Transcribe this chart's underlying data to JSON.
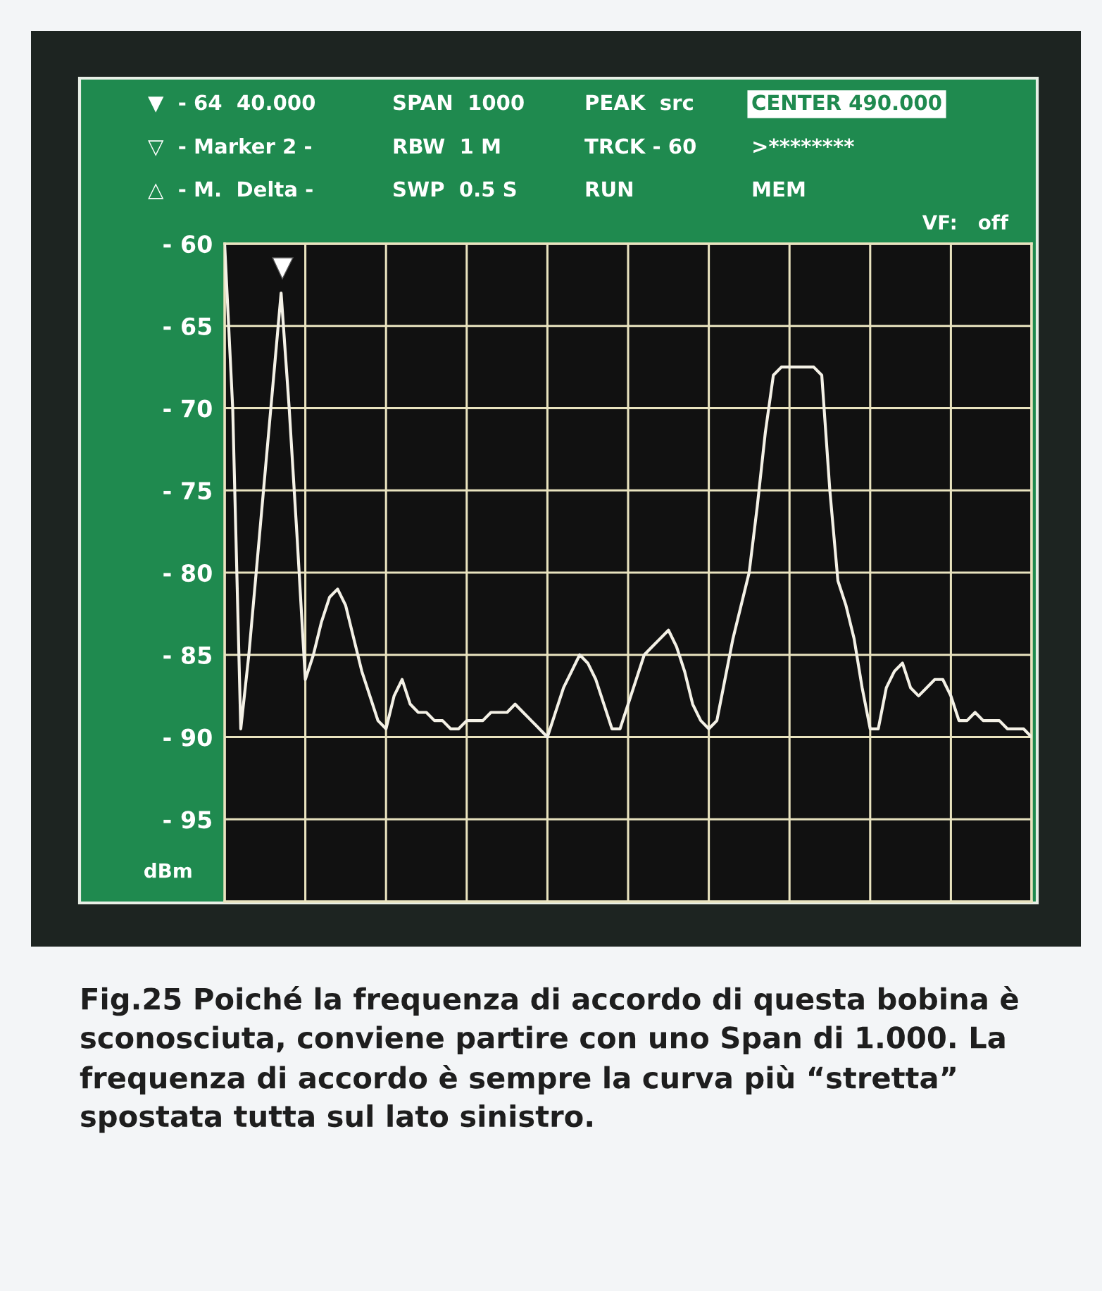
{
  "chart_data": {
    "type": "line",
    "annotations": [
      "▼  - 64  40.000",
      "SPAN  1000",
      "PEAK  src",
      "CENTER 490.000",
      "▽  - Marker 2 -",
      "RBW  1 M",
      "TRCK - 60",
      ">********",
      "△  - M.  Delta -",
      "SWP  0.5 S",
      "RUN",
      "MEM",
      "VF:   off",
      "Fig.25 Poiché la frequenza di accordo di questa bobina è sconosciuta, conviene partire con uno Span di 1.000. La frequenza di accordo è sempre la curva più “stretta” spostata tutta sul lato sinistro."
    ],
    "ylabel": "dBm",
    "categories": [
      null,
      null,
      null,
      null,
      null,
      null,
      null,
      null,
      null,
      null,
      null,
      null,
      null,
      null,
      null,
      null,
      null,
      null,
      null,
      null,
      null,
      null,
      null,
      null,
      null,
      null,
      null,
      null,
      null,
      null,
      null,
      null,
      null,
      null,
      null,
      null,
      null,
      null,
      null,
      null,
      null,
      null,
      null,
      null,
      null,
      null,
      null,
      null,
      null,
      null,
      null,
      null,
      null,
      null,
      null,
      null,
      null,
      null,
      null,
      null,
      null,
      null,
      null,
      null,
      null,
      null,
      null,
      null,
      null,
      null,
      null,
      null,
      null,
      null,
      null,
      null,
      null,
      null,
      null,
      null,
      null,
      null,
      null,
      null,
      null,
      null,
      null,
      null,
      null,
      null,
      null,
      null,
      null,
      null,
      null,
      null,
      null,
      null,
      null,
      null,
      null
    ],
    "series": [
      {
        "color": "#f4f1e6",
        "values": [
          -60,
          -70,
          -89.5,
          -85,
          -79.5,
          -74,
          -68.5,
          -63,
          -70,
          -78,
          -86.5,
          -85,
          -83,
          -81.5,
          -81,
          -82,
          -84,
          -86,
          -87.5,
          -89,
          -89.5,
          -87.5,
          -86.5,
          -88,
          -88.5,
          -88.5,
          -89,
          -89,
          -89.5,
          -89.5,
          -89,
          -89,
          -89,
          -88.5,
          -88.5,
          -88.5,
          -88,
          -88.5,
          -89,
          -89.5,
          -90,
          -88.5,
          -87,
          -86,
          -85,
          -85.5,
          -86.5,
          -88,
          -89.5,
          -89.5,
          -88,
          -86.5,
          -85,
          -84.5,
          -84,
          -83.5,
          -84.5,
          -86,
          -88,
          -89,
          -89.5,
          -89,
          -86.5,
          -84,
          -82,
          -80,
          -76,
          -71.5,
          -68,
          -67.5,
          -67.5,
          -67.5,
          -67.5,
          -67.5,
          -68,
          -75,
          -80.5,
          -82,
          -84,
          -87,
          -89.5,
          -89.5,
          -87,
          -86,
          -85.5,
          -87,
          -87.5,
          -87,
          -86.5,
          -86.5,
          -87.5,
          -89,
          -89,
          -88.5,
          -89,
          -89,
          -89,
          -89.5,
          -89.5,
          -89.5,
          -90
        ]
      }
    ],
    "ylim": [
      -100,
      -60
    ],
    "yticks": [
      {
        "value": -60,
        "label": "- 60"
      },
      {
        "value": -65,
        "label": "- 65"
      },
      {
        "value": -70,
        "label": "- 70"
      },
      {
        "value": -75,
        "label": "- 75"
      },
      {
        "value": -80,
        "label": "- 80"
      },
      {
        "value": -85,
        "label": "- 85"
      },
      {
        "value": -90,
        "label": "- 90"
      },
      {
        "value": -95,
        "label": "- 95"
      }
    ],
    "tick_labels": "y",
    "grid": true,
    "marker": "none",
    "line_style": "solid"
  }
}
